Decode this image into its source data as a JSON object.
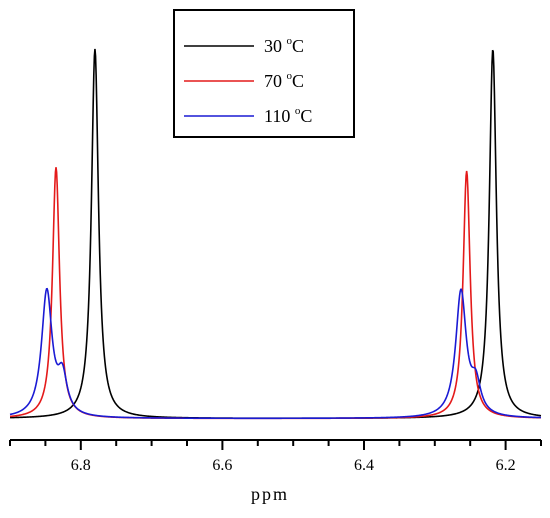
{
  "chart_data": {
    "type": "line",
    "title": "",
    "xlabel": "ppm",
    "ylabel": "",
    "x_reversed": true,
    "xlim": [
      6.9,
      6.15
    ],
    "ylim": [
      0,
      1.05
    ],
    "x_ticks": [
      {
        "value": 6.8,
        "label": "6.8"
      },
      {
        "value": 6.6,
        "label": "6.6"
      },
      {
        "value": 6.4,
        "label": "6.4"
      },
      {
        "value": 6.2,
        "label": "6.2"
      }
    ],
    "legend_position": "top-center",
    "grid": false,
    "series": [
      {
        "name": "30",
        "unit_sup": "o",
        "unit": "C",
        "color": "#000000",
        "baseline": 0.012,
        "peaks": [
          {
            "center": 6.78,
            "height": 1.0,
            "width": 0.006
          },
          {
            "center": 6.218,
            "height": 1.0,
            "width": 0.006
          }
        ],
        "x": [
          6.9,
          6.82,
          6.8,
          6.79,
          6.785,
          6.78,
          6.775,
          6.77,
          6.76,
          6.74,
          6.6,
          6.3,
          6.26,
          6.24,
          6.23,
          6.223,
          6.218,
          6.213,
          6.205,
          6.19,
          6.15
        ],
        "y": [
          0.02,
          0.05,
          0.12,
          0.3,
          0.62,
          1.0,
          0.62,
          0.3,
          0.09,
          0.03,
          0.012,
          0.012,
          0.03,
          0.06,
          0.18,
          0.55,
          1.0,
          0.55,
          0.15,
          0.04,
          0.015
        ]
      },
      {
        "name": "70",
        "unit_sup": "o",
        "unit": "C",
        "color": "#e41a1a",
        "baseline": 0.012,
        "peaks": [
          {
            "center": 6.835,
            "height": 0.68,
            "width": 0.006
          },
          {
            "center": 6.255,
            "height": 0.67,
            "width": 0.006
          }
        ],
        "x": [
          6.9,
          6.86,
          6.845,
          6.84,
          6.835,
          6.83,
          6.825,
          6.81,
          6.78,
          6.7,
          6.3,
          6.27,
          6.262,
          6.255,
          6.248,
          6.24,
          6.22,
          6.15
        ],
        "y": [
          0.02,
          0.06,
          0.22,
          0.45,
          0.68,
          0.45,
          0.22,
          0.06,
          0.025,
          0.012,
          0.02,
          0.08,
          0.35,
          0.67,
          0.35,
          0.1,
          0.03,
          0.01
        ]
      },
      {
        "name": "110",
        "unit_sup": "o",
        "unit": "C",
        "color": "#1a1ad4",
        "baseline": 0.012,
        "peaks": [
          {
            "center": 6.848,
            "height": 0.34,
            "width": 0.009
          },
          {
            "center": 6.263,
            "height": 0.34,
            "width": 0.009
          }
        ],
        "x": [
          6.9,
          6.87,
          6.86,
          6.855,
          6.848,
          6.84,
          6.83,
          6.82,
          6.8,
          6.77,
          6.7,
          6.3,
          6.28,
          6.27,
          6.263,
          6.255,
          6.245,
          6.235,
          6.22,
          6.15
        ],
        "y": [
          0.03,
          0.1,
          0.22,
          0.3,
          0.34,
          0.26,
          0.15,
          0.1,
          0.05,
          0.02,
          0.012,
          0.02,
          0.08,
          0.25,
          0.34,
          0.25,
          0.12,
          0.08,
          0.03,
          0.012
        ]
      }
    ]
  }
}
